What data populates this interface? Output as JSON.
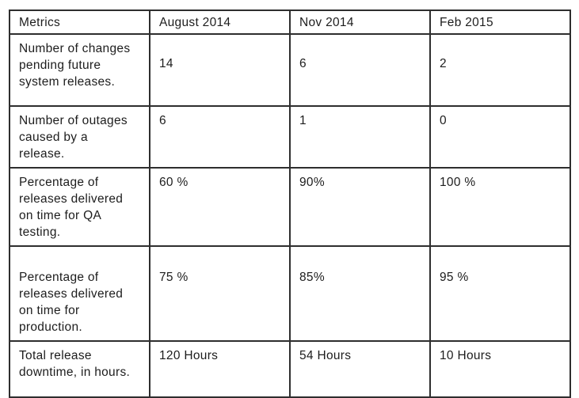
{
  "table": {
    "header": [
      "Metrics",
      "August 2014",
      "Nov 2014",
      "Feb 2015"
    ],
    "rows": [
      {
        "metric": "Number of changes pending future system releases.",
        "values": [
          "14",
          "6",
          "2"
        ]
      },
      {
        "metric": "Number of outages caused by a release.",
        "values": [
          "6",
          "1",
          "0"
        ]
      },
      {
        "metric": "Percentage of releases delivered on time for QA testing.",
        "values": [
          "60 %",
          "90%",
          "100 %"
        ]
      },
      {
        "metric": "Percentage of releases delivered on time for production.",
        "values": [
          "75 %",
          "85%",
          "95 %"
        ]
      },
      {
        "metric": "Total release downtime, in hours.",
        "values": [
          "120 Hours",
          "54 Hours",
          "10 Hours"
        ]
      }
    ]
  },
  "colors": {
    "text": "#1d1d1d",
    "border": "#2e2e2e",
    "background": "#ffffff"
  }
}
